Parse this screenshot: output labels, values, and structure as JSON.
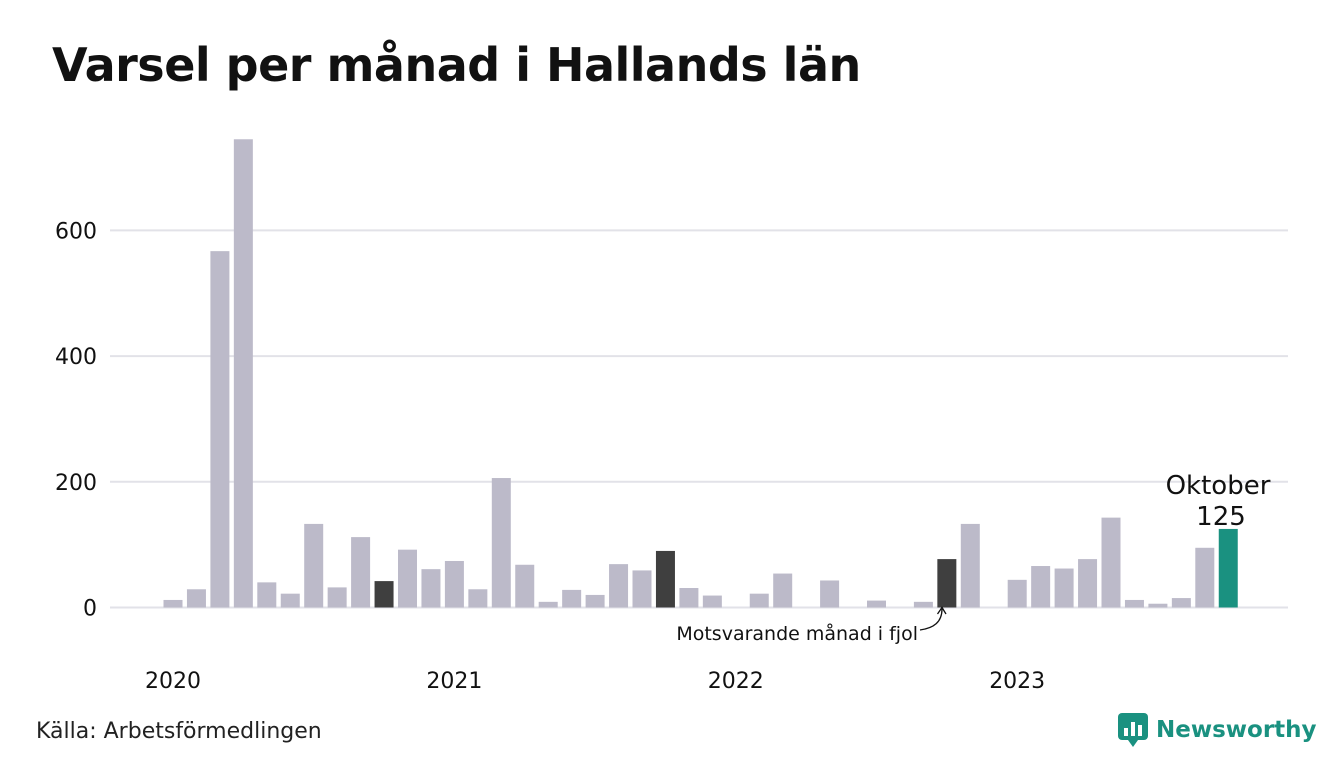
{
  "title": "Varsel per månad i Hallands län",
  "source": "Källa: Arbetsförmedlingen",
  "brand": "Newsworthy",
  "colors": {
    "bar": "#bcbac9",
    "previous_year": "#3f3f3f",
    "current": "#1a9180",
    "grid": "#e2e2e8",
    "brand": "#1a9180"
  },
  "chart_data": {
    "type": "bar",
    "title": "Varsel per månad i Hallands län",
    "xlabel": "",
    "ylabel": "",
    "ylim": [
      0,
      750
    ],
    "yticks": [
      0,
      200,
      400,
      600
    ],
    "grid": true,
    "year_labels": [
      "2020",
      "2021",
      "2022",
      "2023"
    ],
    "categories": [
      "2020-01",
      "2020-02",
      "2020-03",
      "2020-04",
      "2020-05",
      "2020-06",
      "2020-07",
      "2020-08",
      "2020-09",
      "2020-10",
      "2020-11",
      "2020-12",
      "2021-01",
      "2021-02",
      "2021-03",
      "2021-04",
      "2021-05",
      "2021-06",
      "2021-07",
      "2021-08",
      "2021-09",
      "2021-10",
      "2021-11",
      "2021-12",
      "2022-01",
      "2022-02",
      "2022-03",
      "2022-04",
      "2022-05",
      "2022-06",
      "2022-07",
      "2022-08",
      "2022-09",
      "2022-10",
      "2022-11",
      "2022-12",
      "2023-01",
      "2023-02",
      "2023-03",
      "2023-04",
      "2023-05",
      "2023-06",
      "2023-07",
      "2023-08",
      "2023-09",
      "2023-10"
    ],
    "values": [
      12,
      29,
      567,
      745,
      40,
      22,
      133,
      32,
      112,
      42,
      92,
      61,
      74,
      29,
      206,
      68,
      9,
      28,
      20,
      69,
      59,
      90,
      31,
      19,
      0,
      22,
      54,
      0,
      43,
      0,
      11,
      0,
      9,
      77,
      133,
      0,
      44,
      66,
      62,
      77,
      143,
      12,
      6,
      15,
      95,
      125
    ],
    "previous_year_indices": [
      9,
      21,
      33
    ],
    "current_index": 45,
    "current_label": "Oktober",
    "current_value_label": "125",
    "annotation": "Motsvarande månad i fjol"
  }
}
